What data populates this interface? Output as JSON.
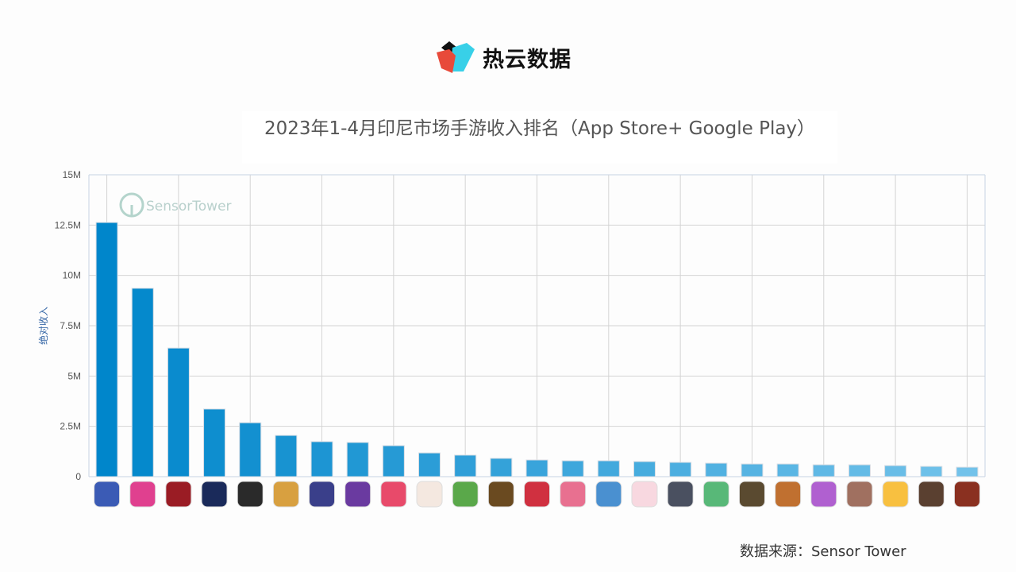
{
  "logo": {
    "text": "热云数据"
  },
  "title": "2023年1-4月印尼市场手游收入排名（App Store+ Google Play）",
  "watermark": "SensorTower",
  "source": "数据来源：Sensor Tower",
  "chart_data": {
    "type": "bar",
    "title": "2023年1-4月印尼市场手游收入排名（App Store+ Google Play）",
    "ylabel": "绝对收入",
    "xlabel": "",
    "ylim": [
      0,
      15000000
    ],
    "yticks": [
      "0",
      "2.5M",
      "5M",
      "7.5M",
      "10M",
      "12.5M",
      "15M"
    ],
    "grid": true,
    "categories_note": "app icons",
    "values": [
      12630000,
      9360000,
      6390000,
      3360000,
      2680000,
      2050000,
      1740000,
      1700000,
      1540000,
      1180000,
      1070000,
      910000,
      830000,
      790000,
      790000,
      750000,
      710000,
      670000,
      630000,
      630000,
      590000,
      590000,
      550000,
      510000,
      470000
    ],
    "bar_color_start": "#0086cb",
    "bar_color_end": "#72c2ea",
    "icon_colors": [
      "#3b5bb5",
      "#e0408f",
      "#9a1c24",
      "#1a2a5a",
      "#2a2a2a",
      "#d8a040",
      "#3a3f8a",
      "#6a3aa0",
      "#e84a6a",
      "#f4e8e0",
      "#5aa84a",
      "#6a4a20",
      "#d03040",
      "#e87090",
      "#4a90d0",
      "#f8d8e0",
      "#4a5060",
      "#58b878",
      "#5a4a30",
      "#c07030",
      "#b060d0",
      "#a07060",
      "#f8c040",
      "#5a4030",
      "#8a3020"
    ]
  }
}
